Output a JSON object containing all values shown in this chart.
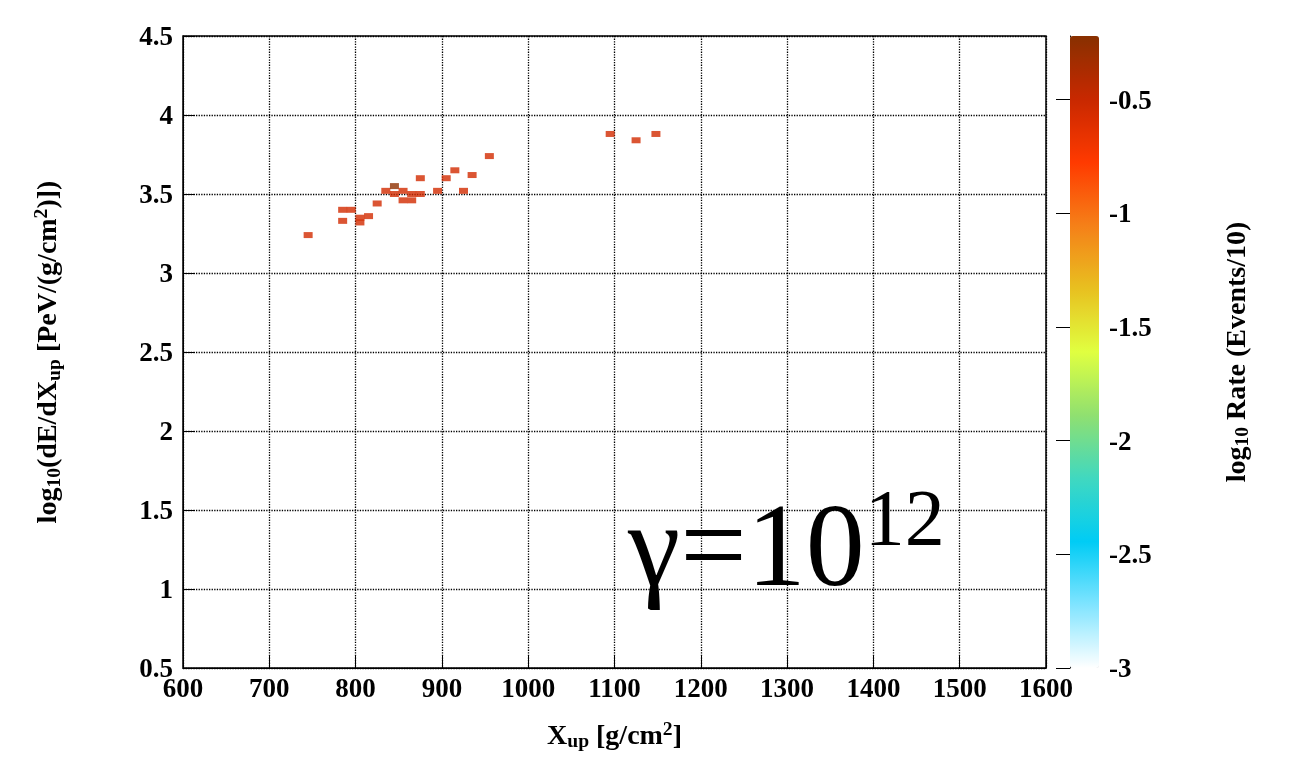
{
  "chart_data": {
    "type": "scatter",
    "xlabel": "X$_{up}$ [g/cm$^{2}$]",
    "ylabel": "log$_{10}$(dE/dX$_{up}$ [PeV/(g/cm$^{2}$)])",
    "clabel": "log$_{10}$ Rate (Events/10)",
    "annotations": [
      "γ=10$^{12}$"
    ],
    "xlim": [
      600,
      1600
    ],
    "xticks": [
      600,
      700,
      800,
      900,
      1000,
      1100,
      1200,
      1300,
      1400,
      1500,
      1600
    ],
    "ylim": [
      0.5,
      4.5
    ],
    "yticks": [
      0.5,
      1,
      1.5,
      2,
      2.5,
      3,
      3.5,
      4,
      4.5
    ],
    "clim": [
      -3,
      -0.22
    ],
    "cticks": [
      -3,
      -2.5,
      -2,
      -1.5,
      -1,
      -0.5
    ],
    "grid": true,
    "marker": "square",
    "series": [
      {
        "x": [
          745,
          785,
          795,
          785,
          805,
          805,
          815,
          825,
          835,
          845,
          845,
          855,
          855,
          865,
          865,
          875,
          875,
          895,
          905,
          915,
          925,
          935,
          955,
          1095,
          1125,
          1148
        ],
        "values": [
          3.24,
          3.4,
          3.4,
          3.33,
          3.35,
          3.32,
          3.36,
          3.44,
          3.52,
          3.55,
          3.5,
          3.52,
          3.46,
          3.46,
          3.5,
          3.5,
          3.6,
          3.52,
          3.6,
          3.65,
          3.52,
          3.62,
          3.74,
          3.88,
          3.84,
          3.88
        ],
        "cvalues": [
          -0.55,
          -0.55,
          -0.55,
          -0.55,
          -0.55,
          -0.55,
          -0.55,
          -0.55,
          -0.55,
          -0.25,
          -0.55,
          -0.55,
          -0.55,
          -0.55,
          -0.55,
          -0.55,
          -0.55,
          -0.55,
          -0.55,
          -0.55,
          -0.55,
          -0.55,
          -0.55,
          -0.55,
          -0.55,
          -0.55
        ]
      }
    ]
  }
}
